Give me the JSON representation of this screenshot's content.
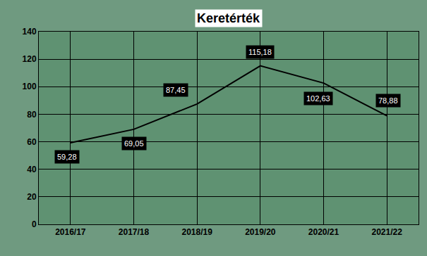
{
  "chart_data": {
    "type": "line",
    "title": "Keretérték",
    "categories": [
      "2016/17",
      "2017/18",
      "2018/19",
      "2019/20",
      "2020/21",
      "2021/22"
    ],
    "values": [
      59.28,
      69.05,
      87.45,
      115.18,
      102.63,
      78.88
    ],
    "value_labels": [
      "59,28",
      "69,05",
      "87,45",
      "115,18",
      "102,63",
      "78,88"
    ],
    "color": "#000000",
    "ylim": [
      0,
      140
    ],
    "yticks": [
      0,
      20,
      40,
      60,
      80,
      100,
      120,
      140
    ],
    "grid": true,
    "data_labels": true
  }
}
